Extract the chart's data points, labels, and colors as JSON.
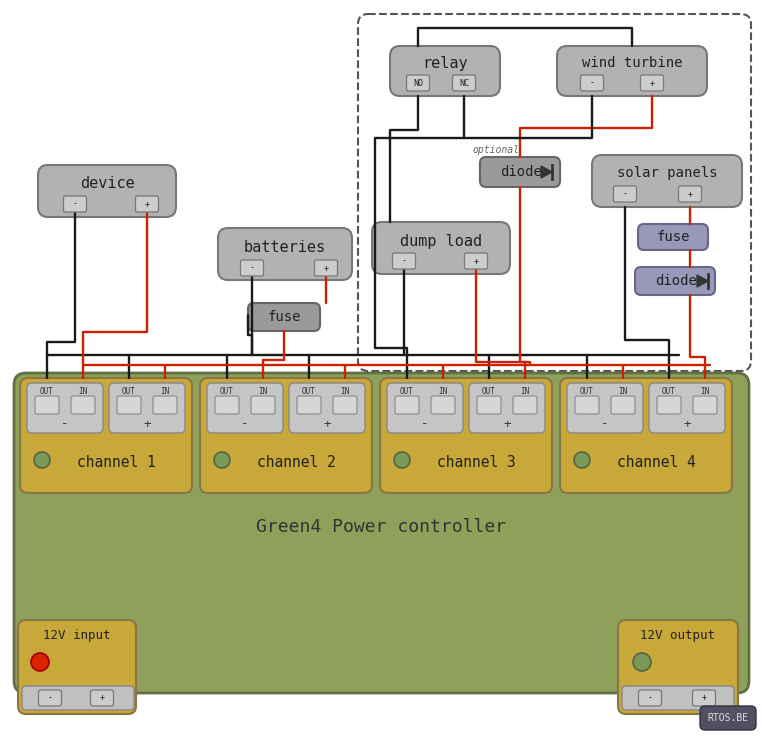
{
  "bg": "#ffffff",
  "ctrl_green": "#8fa05a",
  "ch_yellow": "#c8a838",
  "gray_box": "#b2b2b2",
  "gray_dk": "#9a9a9a",
  "purple_box": "#9898b8",
  "conn_gray": "#c8c8c8",
  "wire_bk": "#1a1a1a",
  "wire_rd": "#cc2200",
  "led_red": "#dd2200",
  "led_green": "#7a9858",
  "dash_col": "#555555",
  "rtos_bg": "#505060",
  "font": "monospace",
  "channels": [
    "channel 1",
    "channel 2",
    "channel 3",
    "channel 4"
  ]
}
